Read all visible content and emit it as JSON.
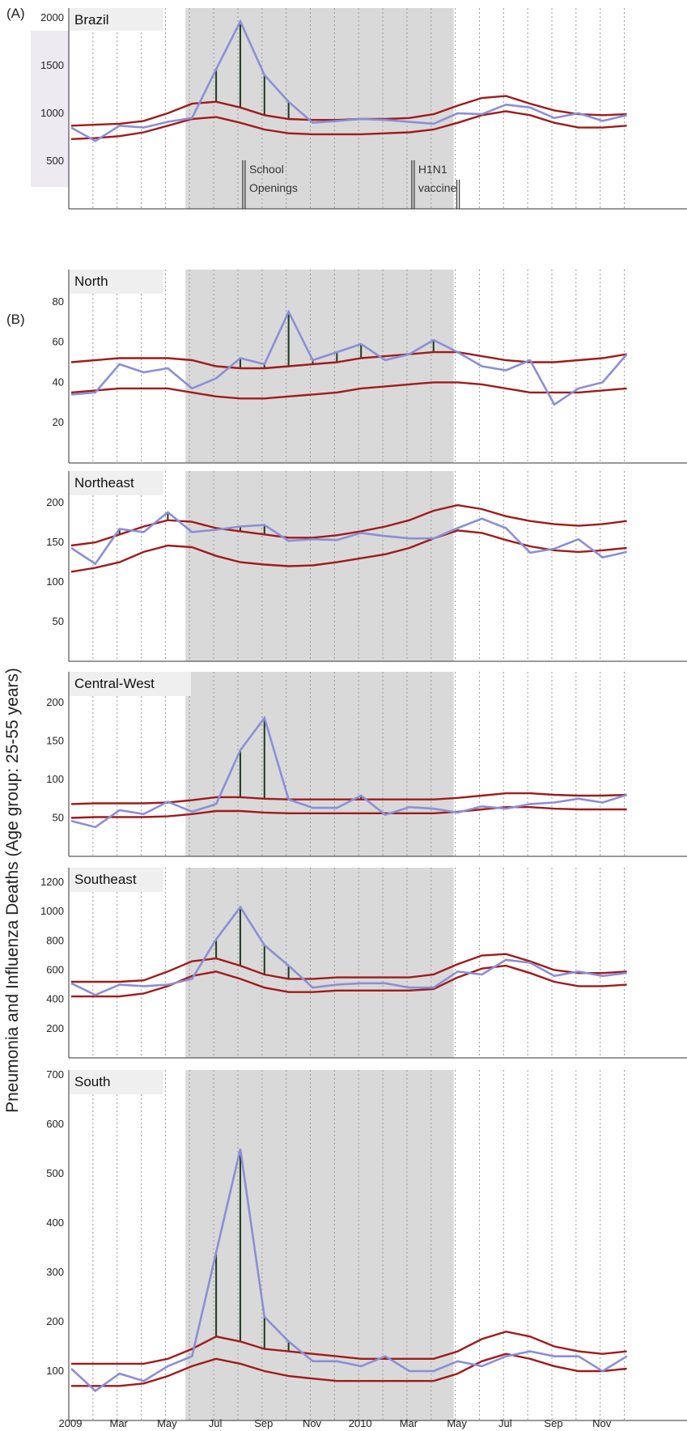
{
  "figure": {
    "panel_labels": [
      "(A)",
      "(B)"
    ],
    "ylabel": "Pneumonia and Influenza Deaths (Age group: 25-55 years)",
    "annotations": [
      {
        "text_lines": [
          "School",
          "Openings"
        ],
        "month_index": 7
      },
      {
        "text_lines": [
          "H1N1",
          "vaccine"
        ],
        "month_index": 14
      }
    ],
    "colors": {
      "observed": "#8a8fd6",
      "threshold": "#a11a1a",
      "excess_bar": "#1c3a1c",
      "shade": "#d9d9d9",
      "grid": "#9a9a9a",
      "label_box": "#efefef"
    }
  },
  "chart_data": [
    {
      "type": "line",
      "title": "Brazil",
      "x_tick_labels": [
        "2009",
        "Mar",
        "May",
        "Jul",
        "Sep",
        "Nov",
        "2010",
        "Mar",
        "May",
        "Jul",
        "Sep",
        "Nov"
      ],
      "months": 24,
      "ylim": [
        0,
        2100
      ],
      "yticks": [
        500,
        1000,
        1500,
        2000
      ],
      "shaded_range": [
        5,
        16
      ],
      "series": [
        {
          "role": "observed",
          "values": [
            850,
            710,
            870,
            850,
            910,
            950,
            1460,
            1960,
            1400,
            1120,
            900,
            920,
            940,
            930,
            910,
            890,
            1000,
            990,
            1090,
            1060,
            950,
            1000,
            920,
            980
          ]
        },
        {
          "role": "upper",
          "values": [
            870,
            880,
            890,
            920,
            1000,
            1100,
            1120,
            1060,
            980,
            940,
            930,
            930,
            940,
            940,
            950,
            990,
            1080,
            1160,
            1180,
            1100,
            1030,
            990,
            980,
            990
          ]
        },
        {
          "role": "lower",
          "values": [
            730,
            740,
            760,
            800,
            870,
            940,
            960,
            900,
            830,
            790,
            780,
            780,
            780,
            790,
            800,
            830,
            900,
            980,
            1020,
            980,
            900,
            850,
            850,
            870
          ]
        }
      ]
    },
    {
      "type": "line",
      "title": "North",
      "x_tick_labels": [],
      "months": 24,
      "ylim": [
        0,
        96
      ],
      "yticks": [
        20,
        40,
        60,
        80
      ],
      "shaded_range": [
        5,
        16
      ],
      "series": [
        {
          "role": "observed",
          "values": [
            34,
            35,
            49,
            45,
            47,
            37,
            42,
            52,
            49,
            75,
            51,
            55,
            59,
            51,
            54,
            61,
            55,
            48,
            46,
            51,
            29,
            37,
            40,
            54
          ]
        },
        {
          "role": "upper",
          "values": [
            50,
            51,
            52,
            52,
            52,
            51,
            48,
            47,
            47,
            48,
            49,
            50,
            52,
            53,
            54,
            55,
            55,
            53,
            51,
            50,
            50,
            51,
            52,
            54
          ]
        },
        {
          "role": "lower",
          "values": [
            35,
            36,
            37,
            37,
            37,
            35,
            33,
            32,
            32,
            33,
            34,
            35,
            37,
            38,
            39,
            40,
            40,
            39,
            37,
            35,
            35,
            35,
            36,
            37
          ]
        }
      ]
    },
    {
      "type": "line",
      "title": "Northeast",
      "x_tick_labels": [],
      "months": 24,
      "ylim": [
        0,
        240
      ],
      "yticks": [
        50,
        100,
        150,
        200
      ],
      "shaded_range": [
        5,
        16
      ],
      "series": [
        {
          "role": "observed",
          "values": [
            143,
            123,
            167,
            163,
            188,
            163,
            166,
            170,
            172,
            152,
            154,
            153,
            162,
            158,
            155,
            155,
            168,
            180,
            168,
            137,
            142,
            154,
            131,
            138
          ]
        },
        {
          "role": "upper",
          "values": [
            146,
            150,
            160,
            170,
            178,
            176,
            168,
            164,
            160,
            156,
            156,
            159,
            164,
            170,
            178,
            190,
            197,
            192,
            183,
            177,
            173,
            171,
            173,
            177
          ]
        },
        {
          "role": "lower",
          "values": [
            113,
            118,
            125,
            138,
            146,
            144,
            133,
            125,
            122,
            120,
            121,
            125,
            130,
            135,
            143,
            155,
            165,
            162,
            153,
            145,
            140,
            138,
            140,
            143
          ]
        }
      ]
    },
    {
      "type": "line",
      "title": "Central-West",
      "x_tick_labels": [],
      "months": 24,
      "ylim": [
        0,
        240
      ],
      "yticks": [
        50,
        100,
        150,
        200
      ],
      "shaded_range": [
        5,
        16
      ],
      "series": [
        {
          "role": "observed",
          "values": [
            46,
            38,
            60,
            55,
            71,
            58,
            68,
            138,
            180,
            74,
            63,
            63,
            79,
            54,
            64,
            62,
            57,
            65,
            62,
            68,
            70,
            75,
            70,
            80
          ]
        },
        {
          "role": "upper",
          "values": [
            68,
            69,
            69,
            69,
            70,
            73,
            77,
            77,
            75,
            74,
            74,
            74,
            74,
            74,
            74,
            74,
            76,
            79,
            82,
            82,
            80,
            79,
            79,
            80
          ]
        },
        {
          "role": "lower",
          "values": [
            50,
            51,
            51,
            51,
            52,
            55,
            59,
            59,
            57,
            56,
            56,
            56,
            56,
            56,
            56,
            56,
            58,
            61,
            64,
            64,
            62,
            61,
            61,
            61
          ]
        }
      ]
    },
    {
      "type": "line",
      "title": "Southeast",
      "x_tick_labels": [],
      "months": 24,
      "ylim": [
        0,
        1300
      ],
      "yticks": [
        200,
        400,
        600,
        800,
        1000,
        1200
      ],
      "shaded_range": [
        5,
        16
      ],
      "series": [
        {
          "role": "observed",
          "values": [
            510,
            430,
            500,
            490,
            500,
            540,
            810,
            1030,
            770,
            630,
            480,
            500,
            510,
            510,
            480,
            480,
            590,
            570,
            670,
            650,
            560,
            590,
            560,
            580
          ]
        },
        {
          "role": "upper",
          "values": [
            520,
            520,
            520,
            530,
            590,
            660,
            680,
            630,
            570,
            540,
            540,
            550,
            550,
            550,
            550,
            570,
            640,
            700,
            710,
            660,
            600,
            580,
            580,
            590
          ]
        },
        {
          "role": "lower",
          "values": [
            420,
            420,
            420,
            440,
            490,
            560,
            590,
            540,
            480,
            450,
            450,
            460,
            460,
            460,
            460,
            470,
            550,
            610,
            630,
            580,
            520,
            490,
            490,
            500
          ]
        }
      ]
    },
    {
      "type": "line",
      "title": "South",
      "x_tick_labels": [
        "2009",
        "Mar",
        "May",
        "Jul",
        "Sep",
        "Nov",
        "2010",
        "Mar",
        "May",
        "Jul",
        "Sep",
        "Nov"
      ],
      "months": 24,
      "ylim": [
        0,
        710
      ],
      "yticks": [
        100,
        200,
        300,
        400,
        500,
        600,
        700
      ],
      "shaded_range": [
        5,
        16
      ],
      "series": [
        {
          "role": "observed",
          "values": [
            105,
            60,
            95,
            80,
            110,
            130,
            340,
            550,
            210,
            160,
            120,
            120,
            110,
            130,
            100,
            100,
            120,
            110,
            130,
            140,
            130,
            130,
            100,
            130
          ]
        },
        {
          "role": "upper",
          "values": [
            115,
            115,
            115,
            115,
            125,
            145,
            170,
            160,
            145,
            140,
            135,
            130,
            125,
            125,
            125,
            125,
            140,
            165,
            180,
            170,
            150,
            140,
            135,
            140
          ]
        },
        {
          "role": "lower",
          "values": [
            70,
            70,
            70,
            75,
            90,
            110,
            125,
            115,
            100,
            90,
            85,
            80,
            80,
            80,
            80,
            80,
            95,
            120,
            135,
            125,
            110,
            100,
            100,
            105
          ]
        }
      ]
    }
  ]
}
